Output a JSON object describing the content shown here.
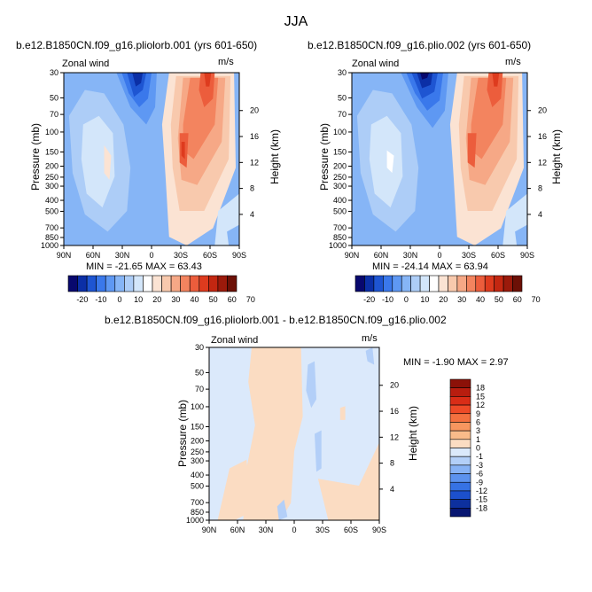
{
  "figure": {
    "suptitle": "JJA"
  },
  "panels": [
    {
      "title": "b.e12.B1850CN.f09_g16.pliolorb.001 (yrs 601-650)",
      "left_label": "Zonal wind",
      "right_label": "m/s",
      "ylabel": "Pressure (mb)",
      "y2label": "Height (km)",
      "stats": "MIN = -21.65   MAX = 63.43"
    },
    {
      "title": "b.e12.B1850CN.f09_g16.plio.002 (yrs 601-650)",
      "left_label": "Zonal wind",
      "right_label": "m/s",
      "ylabel": "Pressure (mb)",
      "y2label": "Height (km)",
      "stats": "MIN = -24.14   MAX = 63.94"
    },
    {
      "title": "b.e12.B1850CN.f09_g16.pliolorb.001 - b.e12.B1850CN.f09_g16.plio.002",
      "left_label": "Zonal wind",
      "right_label": "m/s",
      "ylabel": "Pressure (mb)",
      "y2label": "Height (km)",
      "stats": "MIN =   -1.90   MAX =    2.97"
    }
  ],
  "chart_data": [
    {
      "type": "heatmap",
      "title": "b.e12.B1850CN.f09_g16.pliolorb.001 (yrs 601-650)",
      "xlabel": "",
      "ylabel": "Pressure (mb)",
      "y2label": "Height (km)",
      "x_ticks": [
        "90N",
        "60N",
        "30N",
        "0",
        "30S",
        "60S",
        "90S"
      ],
      "y_ticks": [
        30,
        50,
        70,
        100,
        150,
        200,
        250,
        300,
        400,
        500,
        700,
        850,
        1000
      ],
      "y2_ticks": [
        4,
        8,
        12,
        16,
        20
      ],
      "ylim": [
        1000,
        30
      ],
      "y_scale": "log",
      "min": -21.65,
      "max": 63.43,
      "colorbar_labels": [
        "-20",
        "-10",
        "0",
        "10",
        "20",
        "30",
        "40",
        "50",
        "60",
        "70"
      ],
      "colorbar_colors": [
        "#08086e",
        "#0b2fa6",
        "#1e55d2",
        "#3a78eb",
        "#5e98f3",
        "#86b5f6",
        "#adcdf7",
        "#d3e6fa",
        "#ffffff",
        "#fbe3d3",
        "#f8c9ad",
        "#f6a886",
        "#f3845f",
        "#ec5d3c",
        "#de3b1e",
        "#c32711",
        "#9b1a0b",
        "#6c1006"
      ]
    },
    {
      "type": "heatmap",
      "title": "b.e12.B1850CN.f09_g16.plio.002 (yrs 601-650)",
      "xlabel": "",
      "ylabel": "Pressure (mb)",
      "y2label": "Height (km)",
      "x_ticks": [
        "90N",
        "60N",
        "30N",
        "0",
        "30S",
        "60S",
        "90S"
      ],
      "y_ticks": [
        30,
        50,
        70,
        100,
        150,
        200,
        250,
        300,
        400,
        500,
        700,
        850,
        1000
      ],
      "y2_ticks": [
        4,
        8,
        12,
        16,
        20
      ],
      "ylim": [
        1000,
        30
      ],
      "y_scale": "log",
      "min": -24.14,
      "max": 63.94,
      "colorbar_labels": [
        "-20",
        "-10",
        "0",
        "10",
        "20",
        "30",
        "40",
        "50",
        "60",
        "70"
      ],
      "colorbar_colors": [
        "#08086e",
        "#0b2fa6",
        "#1e55d2",
        "#3a78eb",
        "#5e98f3",
        "#86b5f6",
        "#adcdf7",
        "#d3e6fa",
        "#ffffff",
        "#fbe3d3",
        "#f8c9ad",
        "#f6a886",
        "#f3845f",
        "#ec5d3c",
        "#de3b1e",
        "#c32711",
        "#9b1a0b",
        "#6c1006"
      ]
    },
    {
      "type": "heatmap",
      "title": "b.e12.B1850CN.f09_g16.pliolorb.001 - b.e12.B1850CN.f09_g16.plio.002",
      "xlabel": "",
      "ylabel": "Pressure (mb)",
      "y2label": "Height (km)",
      "x_ticks": [
        "90N",
        "60N",
        "30N",
        "0",
        "30S",
        "60S",
        "90S"
      ],
      "y_ticks": [
        30,
        50,
        70,
        100,
        150,
        200,
        250,
        300,
        400,
        500,
        700,
        850,
        1000
      ],
      "y2_ticks": [
        4,
        8,
        12,
        16,
        20
      ],
      "ylim": [
        1000,
        30
      ],
      "y_scale": "log",
      "min": -1.9,
      "max": 2.97,
      "colorbar_labels": [
        "18",
        "15",
        "12",
        "9",
        "6",
        "3",
        "1",
        "0",
        "-1",
        "-3",
        "-6",
        "-9",
        "-12",
        "-15",
        "-18"
      ],
      "colorbar_colors": [
        "#8c1108",
        "#b81d0f",
        "#d92d17",
        "#ee4a27",
        "#f4703f",
        "#f7965f",
        "#f9bb8a",
        "#fbdcc2",
        "#dbe9fb",
        "#b3cff8",
        "#87b2f5",
        "#5c92ee",
        "#3672e4",
        "#1c50cc",
        "#0d309e",
        "#071671"
      ]
    }
  ]
}
